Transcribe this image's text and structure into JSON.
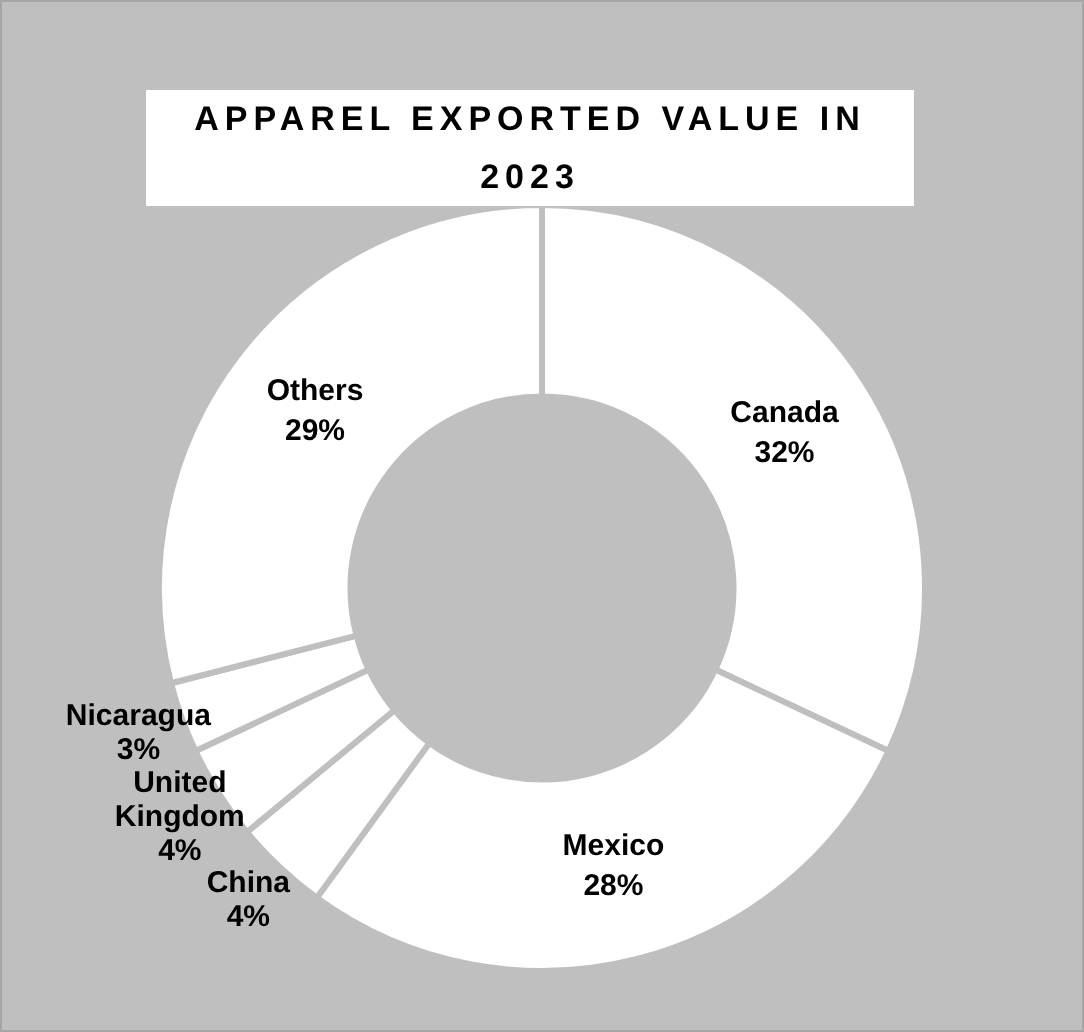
{
  "chart_data": {
    "type": "donut",
    "title": "APPAREL EXPORTED VALUE IN 2023",
    "categories": [
      "Canada",
      "Mexico",
      "China",
      "United Kingdom",
      "Nicaragua",
      "Others"
    ],
    "values": [
      32,
      28,
      4,
      4,
      3,
      29
    ],
    "colors": [
      "#ffffff",
      "#ffffff",
      "#ffffff",
      "#ffffff",
      "#ffffff",
      "#ffffff"
    ],
    "value_labels": [
      "32%",
      "28%",
      "4%",
      "4%",
      "3%",
      "29%"
    ],
    "legend": false
  }
}
